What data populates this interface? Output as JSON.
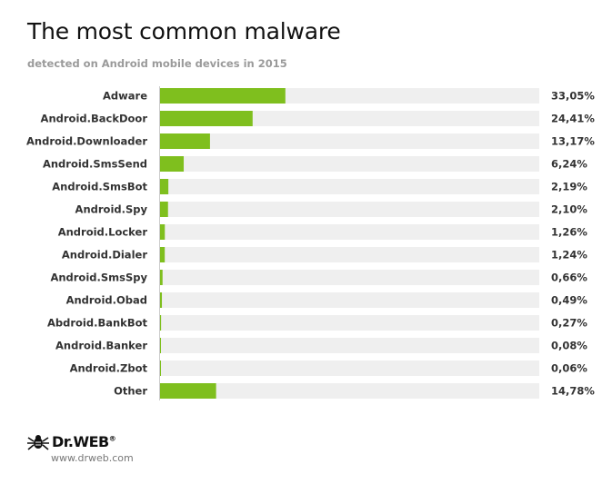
{
  "title": "The most common malware",
  "subtitle": "detected on Android mobile devices in 2015",
  "colors": {
    "bar": "#7fbf1e",
    "track": "#efefef",
    "axis": "#cccccc"
  },
  "logo": {
    "icon": "spider-icon",
    "name": "Dr.WEB",
    "mark": "®",
    "url": "www.drweb.com"
  },
  "chart_data": {
    "type": "bar",
    "orientation": "horizontal",
    "title": "The most common malware",
    "subtitle": "detected on Android mobile devices in 2015",
    "xlim": [
      0,
      100
    ],
    "grid": false,
    "categories": [
      "Adware",
      "Android.BackDoor",
      "Android.Downloader",
      "Android.SmsSend",
      "Android.SmsBot",
      "Android.Spy",
      "Android.Locker",
      "Android.Dialer",
      "Android.SmsSpy",
      "Android.Obad",
      "Abdroid.BankBot",
      "Android.Banker",
      "Android.Zbot",
      "Other"
    ],
    "values": [
      33.05,
      24.41,
      13.17,
      6.24,
      2.19,
      2.1,
      1.26,
      1.24,
      0.66,
      0.49,
      0.27,
      0.08,
      0.06,
      14.78
    ],
    "value_labels": [
      "33,05%",
      "24,41%",
      "13,17%",
      "6,24%",
      "2,19%",
      "2,10%",
      "1,26%",
      "1,24%",
      "0,66%",
      "0,49%",
      "0,27%",
      "0,08%",
      "0,06%",
      "14,78%"
    ]
  }
}
